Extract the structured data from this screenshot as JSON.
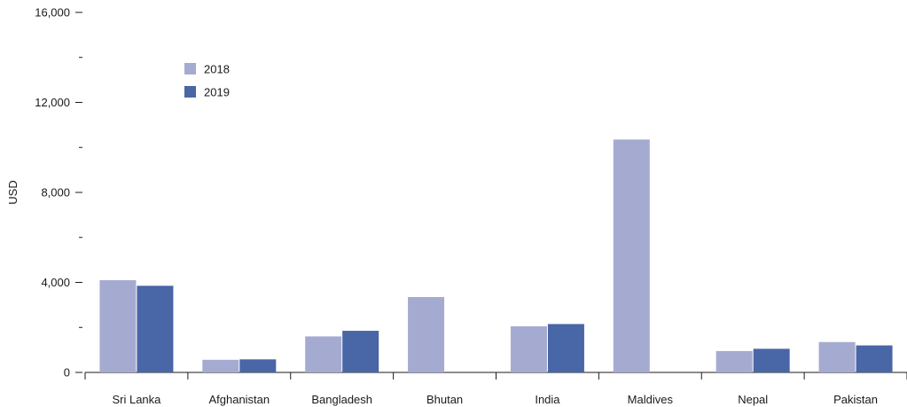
{
  "chart_data": {
    "type": "bar",
    "title": "",
    "xlabel": "",
    "ylabel": "USD",
    "categories": [
      "Sri Lanka",
      "Afghanistan",
      "Bangladesh",
      "Bhutan",
      "India",
      "Maldives",
      "Nepal",
      "Pakistan"
    ],
    "series": [
      {
        "name": "2018",
        "color": "#a5abd0",
        "values": [
          4100,
          560,
          1600,
          3350,
          2050,
          10350,
          950,
          1350
        ]
      },
      {
        "name": "2019",
        "color": "#4966a6",
        "values": [
          3850,
          580,
          1850,
          null,
          2150,
          null,
          1050,
          1200
        ]
      }
    ],
    "ylim": [
      0,
      16000
    ],
    "y_ticks": [
      {
        "value": 0,
        "label": "0"
      },
      {
        "value": 2000,
        "label": "-"
      },
      {
        "value": 4000,
        "label": "4,000"
      },
      {
        "value": 6000,
        "label": "-"
      },
      {
        "value": 8000,
        "label": "8,000"
      },
      {
        "value": 10000,
        "label": "-"
      },
      {
        "value": 12000,
        "label": "12,000"
      },
      {
        "value": 14000,
        "label": "-"
      },
      {
        "value": 16000,
        "label": "16,000"
      }
    ],
    "grid": false,
    "legend_position": "top-left"
  }
}
